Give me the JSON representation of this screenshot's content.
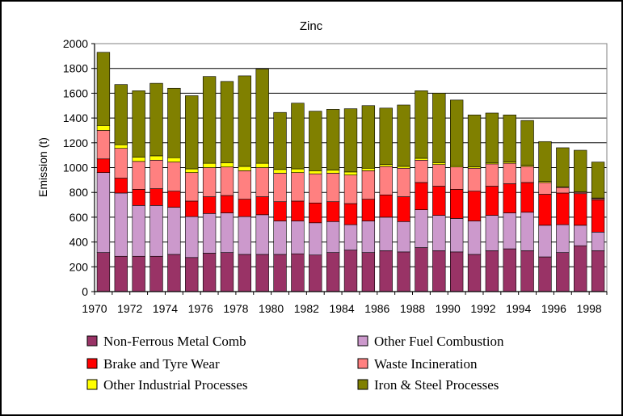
{
  "chart_data": {
    "type": "bar",
    "stacked": true,
    "title": "Zinc",
    "xlabel": "",
    "ylabel": "Emission (t)",
    "ylim": [
      0,
      2000
    ],
    "yticks": [
      0,
      200,
      400,
      600,
      800,
      1000,
      1200,
      1400,
      1600,
      1800,
      2000
    ],
    "grid": "horizontal",
    "legend_position": "bottom",
    "categories": [
      "1970",
      "1971",
      "1972",
      "1973",
      "1974",
      "1975",
      "1976",
      "1977",
      "1978",
      "1979",
      "1980",
      "1981",
      "1982",
      "1983",
      "1984",
      "1985",
      "1986",
      "1987",
      "1988",
      "1989",
      "1990",
      "1991",
      "1992",
      "1993",
      "1994",
      "1995",
      "1996",
      "1997",
      "1998"
    ],
    "xtick_labels": [
      "1970",
      "1972",
      "1974",
      "1976",
      "1978",
      "1980",
      "1982",
      "1984",
      "1986",
      "1988",
      "1990",
      "1992",
      "1994",
      "1996",
      "1998"
    ],
    "series": [
      {
        "name": "Non-Ferrous Metal Comb",
        "color": "#993366",
        "values": [
          315,
          285,
          285,
          285,
          300,
          275,
          310,
          315,
          300,
          300,
          300,
          305,
          295,
          315,
          335,
          315,
          330,
          320,
          355,
          330,
          320,
          300,
          330,
          345,
          330,
          280,
          315,
          370,
          330
        ]
      },
      {
        "name": "Other Fuel Combustion",
        "color": "#cc99cc",
        "values": [
          645,
          510,
          410,
          410,
          380,
          330,
          320,
          320,
          305,
          320,
          270,
          265,
          260,
          250,
          205,
          255,
          270,
          245,
          305,
          285,
          270,
          270,
          285,
          290,
          310,
          255,
          225,
          165,
          150
        ]
      },
      {
        "name": "Brake and Tyre Wear",
        "color": "#ff0000",
        "values": [
          110,
          120,
          130,
          135,
          130,
          125,
          135,
          140,
          140,
          145,
          155,
          160,
          160,
          160,
          170,
          175,
          180,
          200,
          220,
          235,
          235,
          240,
          235,
          235,
          240,
          250,
          255,
          255,
          260
        ]
      },
      {
        "name": "Waste Incineration",
        "color": "#ff8080",
        "values": [
          230,
          240,
          225,
          230,
          235,
          230,
          235,
          230,
          230,
          235,
          230,
          230,
          235,
          230,
          230,
          230,
          230,
          230,
          180,
          175,
          180,
          185,
          180,
          165,
          130,
          95,
          45,
          10,
          10
        ]
      },
      {
        "name": "Other Industrial Processes",
        "color": "#ffff00",
        "values": [
          40,
          30,
          35,
          35,
          35,
          30,
          35,
          35,
          35,
          35,
          30,
          30,
          25,
          25,
          25,
          20,
          15,
          15,
          15,
          15,
          10,
          10,
          10,
          10,
          10,
          10,
          5,
          5,
          5
        ]
      },
      {
        "name": "Iron & Steel Processes",
        "color": "#808000",
        "values": [
          590,
          485,
          535,
          585,
          560,
          590,
          700,
          655,
          730,
          760,
          460,
          530,
          480,
          490,
          510,
          505,
          455,
          495,
          545,
          560,
          530,
          420,
          400,
          380,
          360,
          320,
          315,
          335,
          290
        ]
      }
    ]
  }
}
